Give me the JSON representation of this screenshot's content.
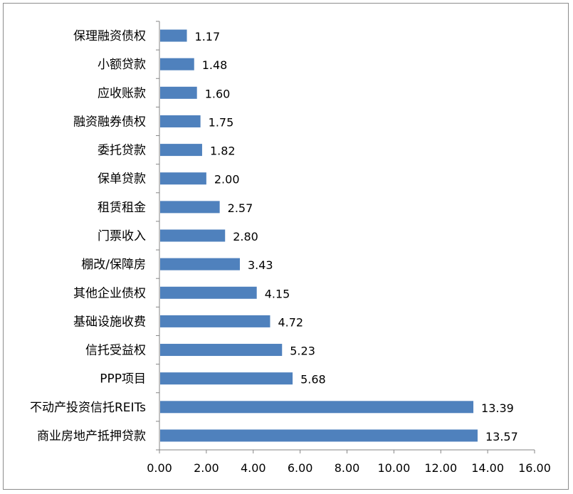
{
  "chart_data": {
    "type": "bar",
    "orientation": "horizontal",
    "title": "",
    "xlabel": "",
    "ylabel": "",
    "xlim": [
      0,
      16
    ],
    "x_ticks": [
      "0.00",
      "2.00",
      "4.00",
      "6.00",
      "8.00",
      "10.00",
      "12.00",
      "14.00",
      "16.00"
    ],
    "grid": false,
    "legend": "none",
    "bar_color": "#4f81bd",
    "categories": [
      "保理融资债权",
      "小额贷款",
      "应收账款",
      "融资融券债权",
      "委托贷款",
      "保单贷款",
      "租赁租金",
      "门票收入",
      "棚改/保障房",
      "其他企业债权",
      "基础设施收费",
      "信托受益权",
      "PPP项目",
      "不动产投资信托REITs",
      "商业房地产抵押贷款"
    ],
    "values": [
      1.17,
      1.48,
      1.6,
      1.75,
      1.82,
      2.0,
      2.57,
      2.8,
      3.43,
      4.15,
      4.72,
      5.23,
      5.68,
      13.39,
      13.57
    ],
    "value_labels": [
      "1.17",
      "1.48",
      "1.60",
      "1.75",
      "1.82",
      "2.00",
      "2.57",
      "2.80",
      "3.43",
      "4.15",
      "4.72",
      "5.23",
      "5.68",
      "13.39",
      "13.57"
    ]
  }
}
